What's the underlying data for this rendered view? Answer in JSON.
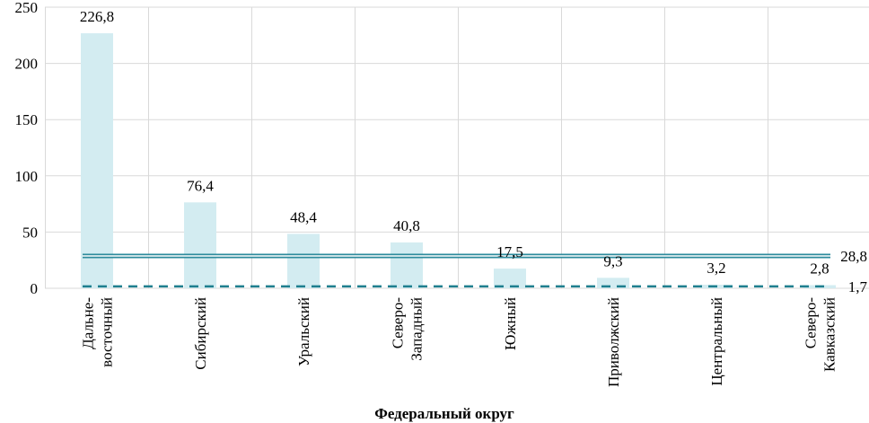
{
  "chart_data": {
    "type": "bar",
    "xlabel": "Федеральный округ",
    "ylabel": "",
    "ylim": [
      0,
      250
    ],
    "yticks": [
      "0",
      "50",
      "100",
      "150",
      "200",
      "250"
    ],
    "grid": true,
    "categories": [
      [
        "Дальне-",
        "восточный"
      ],
      [
        "Сибирский"
      ],
      [
        "Уральский"
      ],
      [
        "Северо-",
        "Западный"
      ],
      [
        "Южный"
      ],
      [
        "Приволжский"
      ],
      [
        "Центральный"
      ],
      [
        "Северо-",
        "Кавказский"
      ]
    ],
    "values": [
      226.8,
      76.4,
      48.4,
      40.8,
      17.5,
      9.3,
      3.2,
      2.8
    ],
    "value_labels": [
      "226,8",
      "76,4",
      "48,4",
      "40,8",
      "17,5",
      "9,3",
      "3,2",
      "2,8"
    ],
    "bar_color": "#d3ecf1",
    "reference_lines": [
      {
        "value": 28.8,
        "label": "28,8",
        "style": "double",
        "color": "#2e8b9c"
      },
      {
        "value": 1.7,
        "label": "1,7",
        "style": "dashed",
        "color": "#1f7f8f"
      }
    ]
  }
}
